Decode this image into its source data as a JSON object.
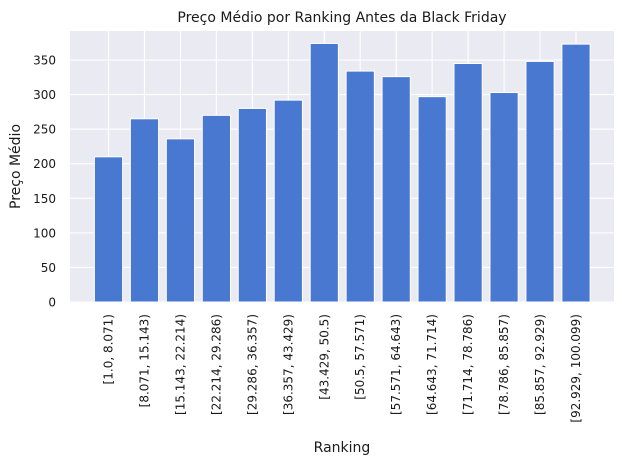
{
  "chart_data": {
    "type": "bar",
    "title": "Preço Médio por Ranking Antes da Black Friday",
    "xlabel": "Ranking",
    "ylabel": "Preço Médio",
    "categories": [
      "[1.0, 8.071)",
      "[8.071, 15.143)",
      "[15.143, 22.214)",
      "[22.214, 29.286)",
      "[29.286, 36.357)",
      "[36.357, 43.429)",
      "[43.429, 50.5)",
      "[50.5, 57.571)",
      "[57.571, 64.643)",
      "[64.643, 71.714)",
      "[71.714, 78.786)",
      "[78.786, 85.857)",
      "[85.857, 92.929)",
      "[92.929, 100.099)"
    ],
    "values": [
      210,
      265,
      236,
      270,
      280,
      292,
      374,
      334,
      326,
      297,
      345,
      303,
      348,
      373
    ],
    "ylim": [
      0,
      392
    ],
    "yticks": [
      0,
      50,
      100,
      150,
      200,
      250,
      300,
      350
    ],
    "grid": true,
    "colors": {
      "bar": "#4878d0",
      "plot_background": "#eaeaf2",
      "grid": "#ffffff",
      "text": "#1a1a1a"
    }
  }
}
